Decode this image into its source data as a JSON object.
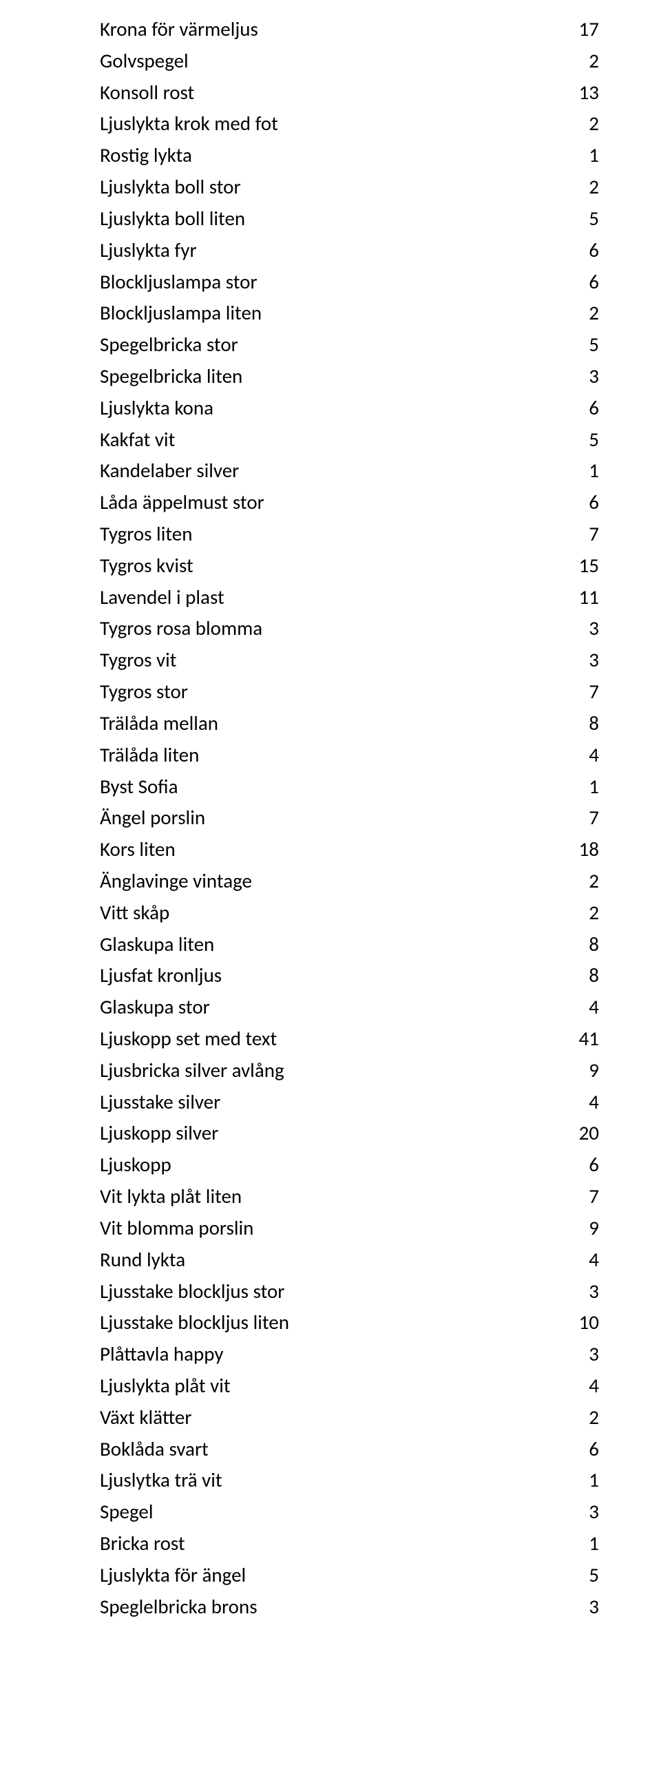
{
  "items": [
    {
      "label": "Krona för värmeljus",
      "value": 17
    },
    {
      "label": "Golvspegel",
      "value": 2
    },
    {
      "label": "Konsoll rost",
      "value": 13
    },
    {
      "label": "Ljuslykta krok med fot",
      "value": 2
    },
    {
      "label": "Rostig lykta",
      "value": 1
    },
    {
      "label": "Ljuslykta boll stor",
      "value": 2
    },
    {
      "label": "Ljuslykta boll liten",
      "value": 5
    },
    {
      "label": "Ljuslykta fyr",
      "value": 6
    },
    {
      "label": "Blockljuslampa stor",
      "value": 6
    },
    {
      "label": "Blockljuslampa liten",
      "value": 2
    },
    {
      "label": "Spegelbricka stor",
      "value": 5
    },
    {
      "label": "Spegelbricka liten",
      "value": 3
    },
    {
      "label": "Ljuslykta kona",
      "value": 6
    },
    {
      "label": "Kakfat vit",
      "value": 5
    },
    {
      "label": "Kandelaber silver",
      "value": 1
    },
    {
      "label": "Låda äppelmust stor",
      "value": 6
    },
    {
      "label": "Tygros liten",
      "value": 7
    },
    {
      "label": "Tygros kvist",
      "value": 15
    },
    {
      "label": "Lavendel i plast",
      "value": 11
    },
    {
      "label": "Tygros rosa blomma",
      "value": 3
    },
    {
      "label": "Tygros vit",
      "value": 3
    },
    {
      "label": "Tygros stor",
      "value": 7
    },
    {
      "label": "Trälåda mellan",
      "value": 8
    },
    {
      "label": "Trälåda liten",
      "value": 4
    },
    {
      "label": "Byst Sofia",
      "value": 1
    },
    {
      "label": "Ängel porslin",
      "value": 7
    },
    {
      "label": "Kors liten",
      "value": 18
    },
    {
      "label": "Änglavinge vintage",
      "value": 2
    },
    {
      "label": "Vitt skåp",
      "value": 2
    },
    {
      "label": "Glaskupa liten",
      "value": 8
    },
    {
      "label": "Ljusfat kronljus",
      "value": 8
    },
    {
      "label": "Glaskupa stor",
      "value": 4
    },
    {
      "label": "Ljuskopp set med text",
      "value": 41
    },
    {
      "label": "Ljusbricka silver avlång",
      "value": 9
    },
    {
      "label": "Ljusstake silver",
      "value": 4
    },
    {
      "label": "Ljuskopp silver",
      "value": 20
    },
    {
      "label": "Ljuskopp",
      "value": 6
    },
    {
      "label": "Vit lykta plåt liten",
      "value": 7
    },
    {
      "label": "Vit blomma porslin",
      "value": 9
    },
    {
      "label": "Rund lykta",
      "value": 4
    },
    {
      "label": "Ljusstake blockljus stor",
      "value": 3
    },
    {
      "label": "Ljusstake blockljus liten",
      "value": 10
    },
    {
      "label": "Plåttavla happy",
      "value": 3
    },
    {
      "label": "Ljuslykta plåt vit",
      "value": 4
    },
    {
      "label": "Växt klätter",
      "value": 2
    },
    {
      "label": "Boklåda svart",
      "value": 6
    },
    {
      "label": "Ljuslytka trä vit",
      "value": 1
    },
    {
      "label": "Spegel",
      "value": 3
    },
    {
      "label": "Bricka rost",
      "value": 1
    },
    {
      "label": "Ljuslykta för ängel",
      "value": 5
    },
    {
      "label": "Speglelbricka brons",
      "value": 3
    }
  ],
  "style": {
    "font_family": "Calibri",
    "font_size_pt": 22,
    "text_color": "#000000",
    "background_color": "#ffffff"
  }
}
